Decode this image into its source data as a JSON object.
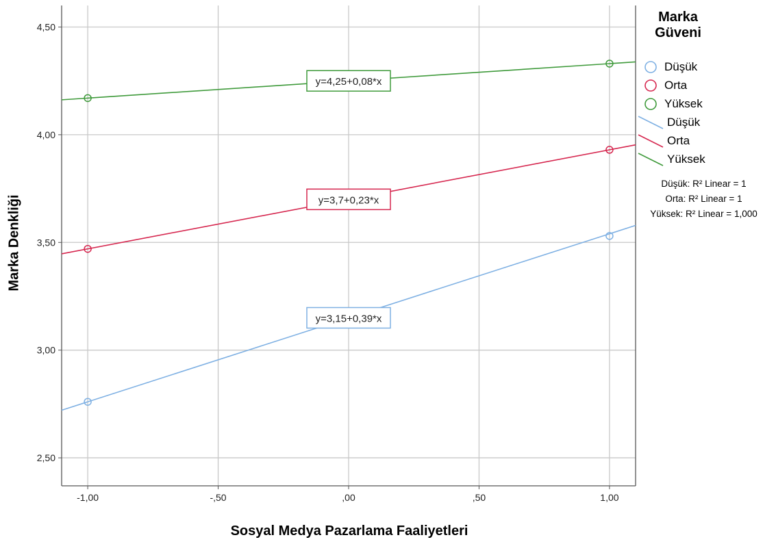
{
  "chart_data": {
    "type": "line",
    "xlabel": "Sosyal Medya Pazarlama Faaliyetleri",
    "ylabel": "Marka Denkliği",
    "xlim": [
      -1.1,
      1.1
    ],
    "ylim": [
      2.37,
      4.6
    ],
    "x_ticks": [
      -1.0,
      -0.5,
      0.0,
      0.5,
      1.0
    ],
    "x_tick_labels": [
      "-1,00",
      "-,50",
      ",00",
      ",50",
      "1,00"
    ],
    "y_ticks": [
      2.5,
      3.0,
      3.5,
      4.0,
      4.5
    ],
    "y_tick_labels": [
      "2,50",
      "3,00",
      "3,50",
      "4,00",
      "4,50"
    ],
    "grid": true,
    "legend_position": "right",
    "legend_title": "Marka Güveni",
    "series": [
      {
        "name": "Düşük",
        "color": "#7eb0e3",
        "intercept": 3.15,
        "slope": 0.39,
        "points": [
          [
            -1.0,
            2.76
          ],
          [
            1.0,
            3.53
          ]
        ],
        "equation": "y=3,15+0,39*x",
        "r2": "Düşük: R² Linear = 1"
      },
      {
        "name": "Orta",
        "color": "#d6274f",
        "intercept": 3.7,
        "slope": 0.23,
        "points": [
          [
            -1.0,
            3.47
          ],
          [
            1.0,
            3.93
          ]
        ],
        "equation": "y=3,7+0,23*x",
        "r2": "Orta: R² Linear = 1"
      },
      {
        "name": "Yüksek",
        "color": "#3f9a3b",
        "intercept": 4.25,
        "slope": 0.08,
        "points": [
          [
            -1.0,
            4.17
          ],
          [
            1.0,
            4.33
          ]
        ],
        "equation": "y=4,25+0,08*x",
        "r2": "Yüksek: R² Linear = 1,000"
      }
    ]
  }
}
